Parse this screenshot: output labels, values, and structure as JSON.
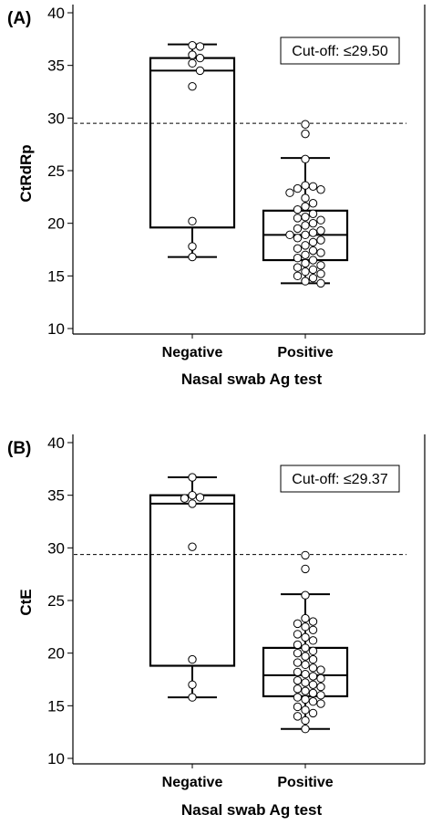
{
  "chart_data": [
    {
      "panel_label": "(A)",
      "type": "box-dot",
      "ylabel": "CtRdRp",
      "xlabel": "Nasal swab Ag test",
      "categories": [
        "Negative",
        "Positive"
      ],
      "ylim": [
        10,
        40
      ],
      "yticks": [
        10,
        15,
        20,
        25,
        30,
        35,
        40
      ],
      "cutoff": {
        "value": 29.5,
        "label": "Cut-off: ≤29.50"
      },
      "boxes": [
        {
          "category": "Negative",
          "whisker_low": 16.8,
          "q1": 19.6,
          "median": 34.5,
          "q3": 35.7,
          "whisker_high": 37.0
        },
        {
          "category": "Positive",
          "whisker_low": 14.3,
          "q1": 16.5,
          "median": 18.9,
          "q3": 21.2,
          "whisker_high": 26.2
        }
      ],
      "points": [
        {
          "category": "Negative",
          "values": [
            36.9,
            36.8,
            36.0,
            35.7,
            35.2,
            34.5,
            33.0,
            20.2,
            17.8,
            16.8
          ]
        },
        {
          "category": "Positive",
          "values": [
            29.4,
            28.5,
            26.1,
            23.6,
            23.5,
            23.3,
            23.2,
            22.9,
            22.4,
            21.9,
            21.6,
            21.3,
            20.9,
            20.6,
            20.5,
            20.3,
            20.0,
            19.8,
            19.5,
            19.3,
            19.1,
            18.9,
            18.9,
            18.6,
            18.4,
            18.2,
            17.9,
            17.6,
            17.4,
            17.2,
            17.0,
            16.7,
            16.5,
            16.2,
            16.0,
            15.8,
            15.6,
            15.4,
            15.2,
            15.0,
            14.8,
            14.5,
            14.3
          ]
        }
      ]
    },
    {
      "panel_label": "(B)",
      "type": "box-dot",
      "ylabel": "CtE",
      "xlabel": "Nasal swab Ag test",
      "categories": [
        "Negative",
        "Positive"
      ],
      "ylim": [
        10,
        40
      ],
      "yticks": [
        10,
        15,
        20,
        25,
        30,
        35,
        40
      ],
      "cutoff": {
        "value": 29.37,
        "label": "Cut-off: ≤29.37"
      },
      "boxes": [
        {
          "category": "Negative",
          "whisker_low": 15.8,
          "q1": 18.8,
          "median": 34.2,
          "q3": 35.0,
          "whisker_high": 36.7
        },
        {
          "category": "Positive",
          "whisker_low": 12.8,
          "q1": 15.9,
          "median": 17.9,
          "q3": 20.5,
          "whisker_high": 25.6
        }
      ],
      "points": [
        {
          "category": "Negative",
          "values": [
            36.7,
            35.0,
            34.8,
            34.7,
            34.2,
            30.1,
            19.4,
            17.0,
            15.8
          ]
        },
        {
          "category": "Positive",
          "values": [
            29.3,
            28.0,
            25.5,
            23.3,
            23.0,
            22.8,
            22.5,
            22.2,
            21.8,
            21.5,
            21.2,
            20.8,
            20.5,
            20.2,
            20.0,
            19.7,
            19.4,
            19.1,
            18.9,
            18.6,
            18.4,
            18.2,
            18.0,
            17.8,
            17.6,
            17.4,
            17.2,
            17.0,
            16.8,
            16.6,
            16.4,
            16.2,
            16.0,
            15.8,
            15.6,
            15.4,
            15.2,
            14.9,
            14.6,
            14.3,
            14.0,
            13.6,
            12.8
          ]
        }
      ]
    }
  ]
}
